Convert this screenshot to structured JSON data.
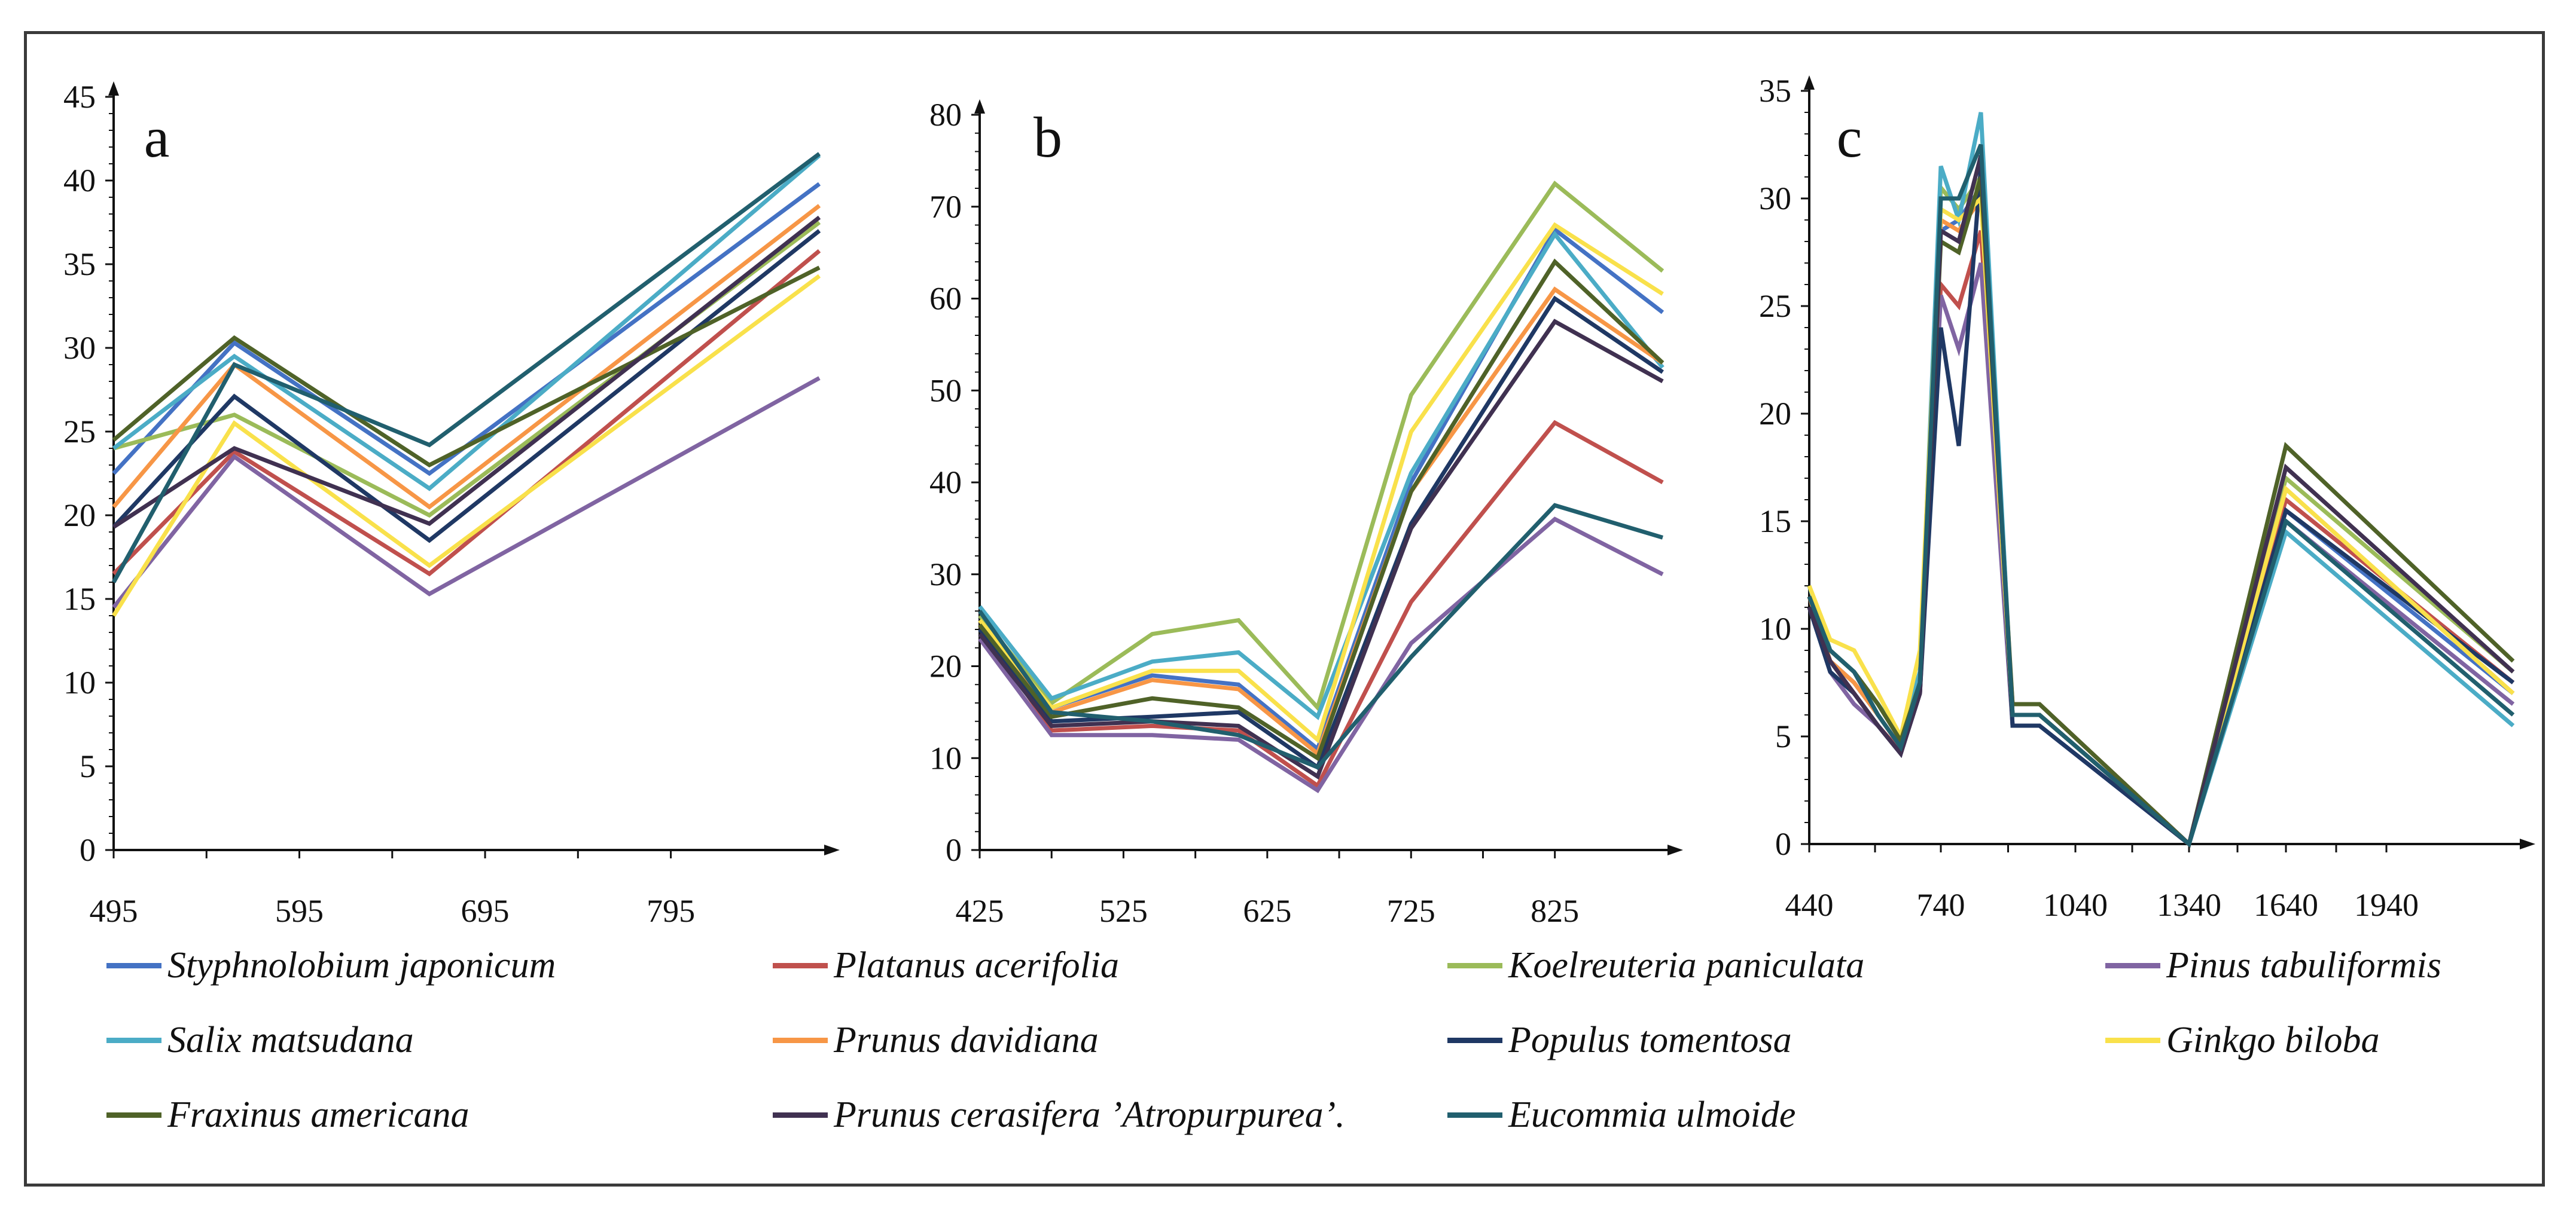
{
  "colors": {
    "Styphnolobium japonicum": "#4472c4",
    "Platanus acerifolia": "#c0504d",
    "Koelreuteria paniculata": "#9bbb59",
    "Pinus tabuliformis": "#8064a2",
    "Salix matsudana": "#4bacc6",
    "Prunus davidiana": "#f79646",
    "Populus tomentosa": "#1f3864",
    "Ginkgo biloba": "#f9e14b",
    "Fraxinus americana": "#4f6228",
    "Prunus cerasifera 'Atropurpurea'.": "#403151",
    "Eucommia ulmoide": "#215f6e"
  },
  "legend": [
    "Styphnolobium japonicum",
    "Platanus acerifolia",
    "Koelreuteria paniculata",
    "Pinus tabuliformis",
    "Salix matsudana",
    "Prunus davidiana",
    "Populus tomentosa",
    "Ginkgo biloba",
    "Fraxinus americana",
    "Prunus cerasifera 'Atropurpurea'.",
    "Eucommia ulmoide"
  ],
  "legend_labels": [
    "Styphnolobium japonicum",
    "Platanus acerifolia",
    "Koelreuteria paniculata",
    "Pinus tabuliformis",
    "Salix matsudana",
    " Prunus davidiana",
    "Populus tomentosa",
    "Ginkgo biloba",
    "Fraxinus americana",
    " Prunus cerasifera ’Atropurpurea’.",
    "Eucommia ulmoide"
  ],
  "chart_data": [
    {
      "type": "line",
      "panel": "a",
      "xlim": [
        495,
        875
      ],
      "ylim": [
        0,
        45
      ],
      "x_ticks": [
        495,
        595,
        695,
        795
      ],
      "y_ticks": [
        0,
        5,
        10,
        15,
        20,
        25,
        30,
        35,
        40,
        45
      ],
      "x": [
        495,
        560,
        665,
        875
      ],
      "series": [
        {
          "name": "Styphnolobium japonicum",
          "values": [
            22.5,
            30.3,
            22.5,
            39.8
          ]
        },
        {
          "name": "Platanus acerifolia",
          "values": [
            16.5,
            23.8,
            16.5,
            35.8
          ]
        },
        {
          "name": "Koelreuteria paniculata",
          "values": [
            24.0,
            26.0,
            20.0,
            37.5
          ]
        },
        {
          "name": "Pinus tabuliformis",
          "values": [
            14.5,
            23.5,
            15.3,
            28.2
          ]
        },
        {
          "name": "Salix matsudana",
          "values": [
            24.0,
            29.5,
            21.6,
            41.5
          ]
        },
        {
          "name": "Prunus davidiana",
          "values": [
            20.5,
            29.0,
            20.5,
            38.5
          ]
        },
        {
          "name": "Populus tomentosa",
          "values": [
            19.3,
            27.1,
            18.5,
            37.0
          ]
        },
        {
          "name": "Ginkgo biloba",
          "values": [
            14.0,
            25.5,
            17.0,
            34.3
          ]
        },
        {
          "name": "Fraxinus americana",
          "values": [
            24.5,
            30.6,
            23.0,
            34.8
          ]
        },
        {
          "name": "Prunus cerasifera 'Atropurpurea'.",
          "values": [
            19.3,
            24.0,
            19.5,
            37.8
          ]
        },
        {
          "name": "Eucommia ulmoide",
          "values": [
            16.0,
            29.0,
            24.2,
            41.6
          ]
        }
      ],
      "title": "",
      "xlabel": "",
      "ylabel": ""
    },
    {
      "type": "line",
      "panel": "b",
      "xlim": [
        425,
        900
      ],
      "ylim": [
        0,
        80
      ],
      "x_ticks": [
        425,
        525,
        625,
        725,
        825
      ],
      "y_ticks": [
        0,
        10,
        20,
        30,
        40,
        50,
        60,
        70,
        80
      ],
      "x": [
        425,
        475,
        545,
        605,
        660,
        725,
        825,
        900
      ],
      "series": [
        {
          "name": "Styphnolobium japonicum",
          "values": [
            24.0,
            15.5,
            19.0,
            18.0,
            11.0,
            40.0,
            67.5,
            58.5
          ]
        },
        {
          "name": "Platanus acerifolia",
          "values": [
            24.5,
            13.0,
            13.5,
            13.0,
            7.0,
            27.0,
            46.5,
            40.0
          ]
        },
        {
          "name": "Koelreuteria paniculata",
          "values": [
            25.5,
            16.0,
            23.5,
            25.0,
            15.5,
            49.5,
            72.5,
            63.0
          ]
        },
        {
          "name": "Pinus tabuliformis",
          "values": [
            23.0,
            12.5,
            12.5,
            12.0,
            6.5,
            22.5,
            36.0,
            30.0
          ]
        },
        {
          "name": "Salix matsudana",
          "values": [
            26.5,
            16.5,
            20.5,
            21.5,
            14.5,
            41.0,
            67.0,
            52.5
          ]
        },
        {
          "name": "Prunus davidiana",
          "values": [
            24.5,
            15.0,
            18.5,
            17.5,
            10.5,
            39.0,
            61.0,
            53.0
          ]
        },
        {
          "name": "Populus tomentosa",
          "values": [
            24.0,
            14.0,
            14.5,
            15.0,
            9.0,
            35.5,
            60.0,
            52.0
          ]
        },
        {
          "name": "Ginkgo biloba",
          "values": [
            25.0,
            15.5,
            19.5,
            19.5,
            12.0,
            45.5,
            68.0,
            60.5
          ]
        },
        {
          "name": "Fraxinus americana",
          "values": [
            24.5,
            14.5,
            16.5,
            15.5,
            10.0,
            39.0,
            64.0,
            53.0
          ]
        },
        {
          "name": "Prunus cerasifera 'Atropurpurea'.",
          "values": [
            23.5,
            13.5,
            14.0,
            13.5,
            8.0,
            35.0,
            57.5,
            51.0
          ]
        },
        {
          "name": "Eucommia ulmoide",
          "values": [
            26.0,
            15.0,
            14.0,
            12.5,
            9.0,
            21.0,
            37.5,
            34.0
          ]
        }
      ],
      "title": "",
      "xlabel": "",
      "ylabel": ""
    },
    {
      "type": "line",
      "panel": "c",
      "xlim": [
        440,
        2240
      ],
      "ylim": [
        0,
        35
      ],
      "x_ticks": [
        440,
        740,
        1040,
        1340,
        1640,
        1940
      ],
      "x_tick_labels": [
        "440",
        "740",
        "1040",
        "1340",
        "1640",
        "1940"
      ],
      "y_ticks": [
        0,
        5,
        10,
        15,
        20,
        25,
        30,
        35
      ],
      "x": [
        440,
        490,
        540,
        590,
        640,
        690,
        740,
        790,
        840,
        890,
        940,
        1340,
        1640,
        2240
      ],
      "series": [
        {
          "name": "Styphnolobium japonicum",
          "values": [
            11.5,
            8.5,
            7.5,
            6.0,
            4.5,
            7.5,
            28.5,
            29.0,
            30.5,
            5.5,
            5.5,
            0.0,
            15.5,
            7.0
          ]
        },
        {
          "name": "Platanus acerifolia",
          "values": [
            11.5,
            8.5,
            7.0,
            5.5,
            4.3,
            7.0,
            26.0,
            25.0,
            28.5,
            6.5,
            6.5,
            0.0,
            16.0,
            7.5
          ]
        },
        {
          "name": "Koelreuteria paniculata",
          "values": [
            12.0,
            9.0,
            8.0,
            6.5,
            5.0,
            8.0,
            30.5,
            29.5,
            31.0,
            6.0,
            6.0,
            0.0,
            17.0,
            8.0
          ]
        },
        {
          "name": "Pinus tabuliformis",
          "values": [
            11.0,
            8.0,
            6.5,
            5.5,
            4.2,
            7.0,
            25.5,
            23.0,
            27.0,
            5.5,
            5.5,
            0.0,
            15.0,
            6.5
          ]
        },
        {
          "name": "Salix matsudana",
          "values": [
            12.0,
            9.0,
            8.0,
            6.5,
            5.0,
            8.0,
            31.5,
            29.0,
            34.0,
            6.0,
            6.0,
            0.0,
            14.5,
            5.5
          ]
        },
        {
          "name": "Prunus davidiana",
          "values": [
            11.5,
            8.5,
            7.5,
            6.0,
            4.5,
            7.5,
            29.0,
            28.5,
            30.0,
            6.0,
            6.0,
            0.0,
            16.5,
            7.0
          ]
        },
        {
          "name": "Populus tomentosa",
          "values": [
            11.0,
            8.0,
            7.0,
            5.5,
            4.2,
            7.0,
            24.0,
            18.5,
            31.5,
            5.5,
            5.5,
            0.0,
            15.5,
            7.5
          ]
        },
        {
          "name": "Ginkgo biloba",
          "values": [
            12.0,
            9.5,
            9.0,
            7.0,
            5.0,
            9.0,
            29.5,
            29.0,
            30.0,
            6.0,
            6.0,
            0.0,
            16.5,
            7.0
          ]
        },
        {
          "name": "Fraxinus americana",
          "values": [
            11.5,
            9.0,
            8.0,
            6.5,
            4.8,
            7.5,
            28.0,
            27.5,
            31.0,
            6.5,
            6.5,
            0.0,
            18.5,
            8.5
          ]
        },
        {
          "name": "Prunus cerasifera 'Atropurpurea'.",
          "values": [
            11.0,
            8.5,
            7.0,
            5.5,
            4.2,
            7.0,
            28.5,
            28.0,
            32.0,
            6.0,
            6.0,
            0.0,
            17.5,
            8.0
          ]
        },
        {
          "name": "Eucommia ulmoide",
          "values": [
            11.5,
            9.0,
            8.0,
            6.0,
            4.5,
            7.5,
            30.0,
            30.0,
            32.5,
            6.0,
            6.0,
            0.0,
            15.0,
            6.0
          ]
        }
      ],
      "title": "",
      "xlabel": "",
      "ylabel": ""
    }
  ]
}
